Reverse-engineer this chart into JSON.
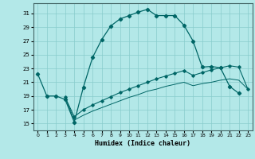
{
  "xlabel": "Humidex (Indice chaleur)",
  "background_color": "#b3e8e8",
  "grid_color": "#88cccc",
  "line_color": "#006666",
  "x_min": -0.5,
  "x_max": 23.5,
  "y_min": 14,
  "y_max": 32.5,
  "y_ticks": [
    15,
    17,
    19,
    21,
    23,
    25,
    27,
    29,
    31
  ],
  "x_ticks": [
    0,
    1,
    2,
    3,
    4,
    5,
    6,
    7,
    8,
    9,
    10,
    11,
    12,
    13,
    14,
    15,
    16,
    17,
    18,
    19,
    20,
    21,
    22,
    23
  ],
  "line1_x": [
    0,
    1,
    2,
    3,
    4,
    5,
    6,
    7,
    8,
    9,
    10,
    11,
    12,
    13,
    14,
    15,
    16,
    17,
    18,
    19,
    20,
    21,
    22
  ],
  "line1_y": [
    22.2,
    19.0,
    19.0,
    18.5,
    15.2,
    20.3,
    24.6,
    27.2,
    29.2,
    30.2,
    30.7,
    31.2,
    31.6,
    30.7,
    30.7,
    30.7,
    29.3,
    27.0,
    23.2,
    23.3,
    23.1,
    20.4,
    19.4
  ],
  "line2_x": [
    3,
    4,
    5,
    6,
    7,
    8,
    9,
    10,
    11,
    12,
    13,
    14,
    15,
    16,
    17,
    18,
    19,
    20,
    21,
    22,
    23
  ],
  "line2_y": [
    18.8,
    16.0,
    17.0,
    17.7,
    18.3,
    18.9,
    19.5,
    20.0,
    20.5,
    21.0,
    21.5,
    21.9,
    22.3,
    22.7,
    22.0,
    22.4,
    22.8,
    23.1,
    23.4,
    23.2,
    20.0
  ],
  "line3_x": [
    3,
    4,
    5,
    6,
    7,
    8,
    9,
    10,
    11,
    12,
    13,
    14,
    15,
    16,
    17,
    18,
    19,
    20,
    21,
    22,
    23
  ],
  "line3_y": [
    18.8,
    15.5,
    16.2,
    16.8,
    17.3,
    17.8,
    18.3,
    18.8,
    19.2,
    19.7,
    20.0,
    20.4,
    20.7,
    21.0,
    20.5,
    20.8,
    21.0,
    21.3,
    21.5,
    21.3,
    20.0
  ]
}
